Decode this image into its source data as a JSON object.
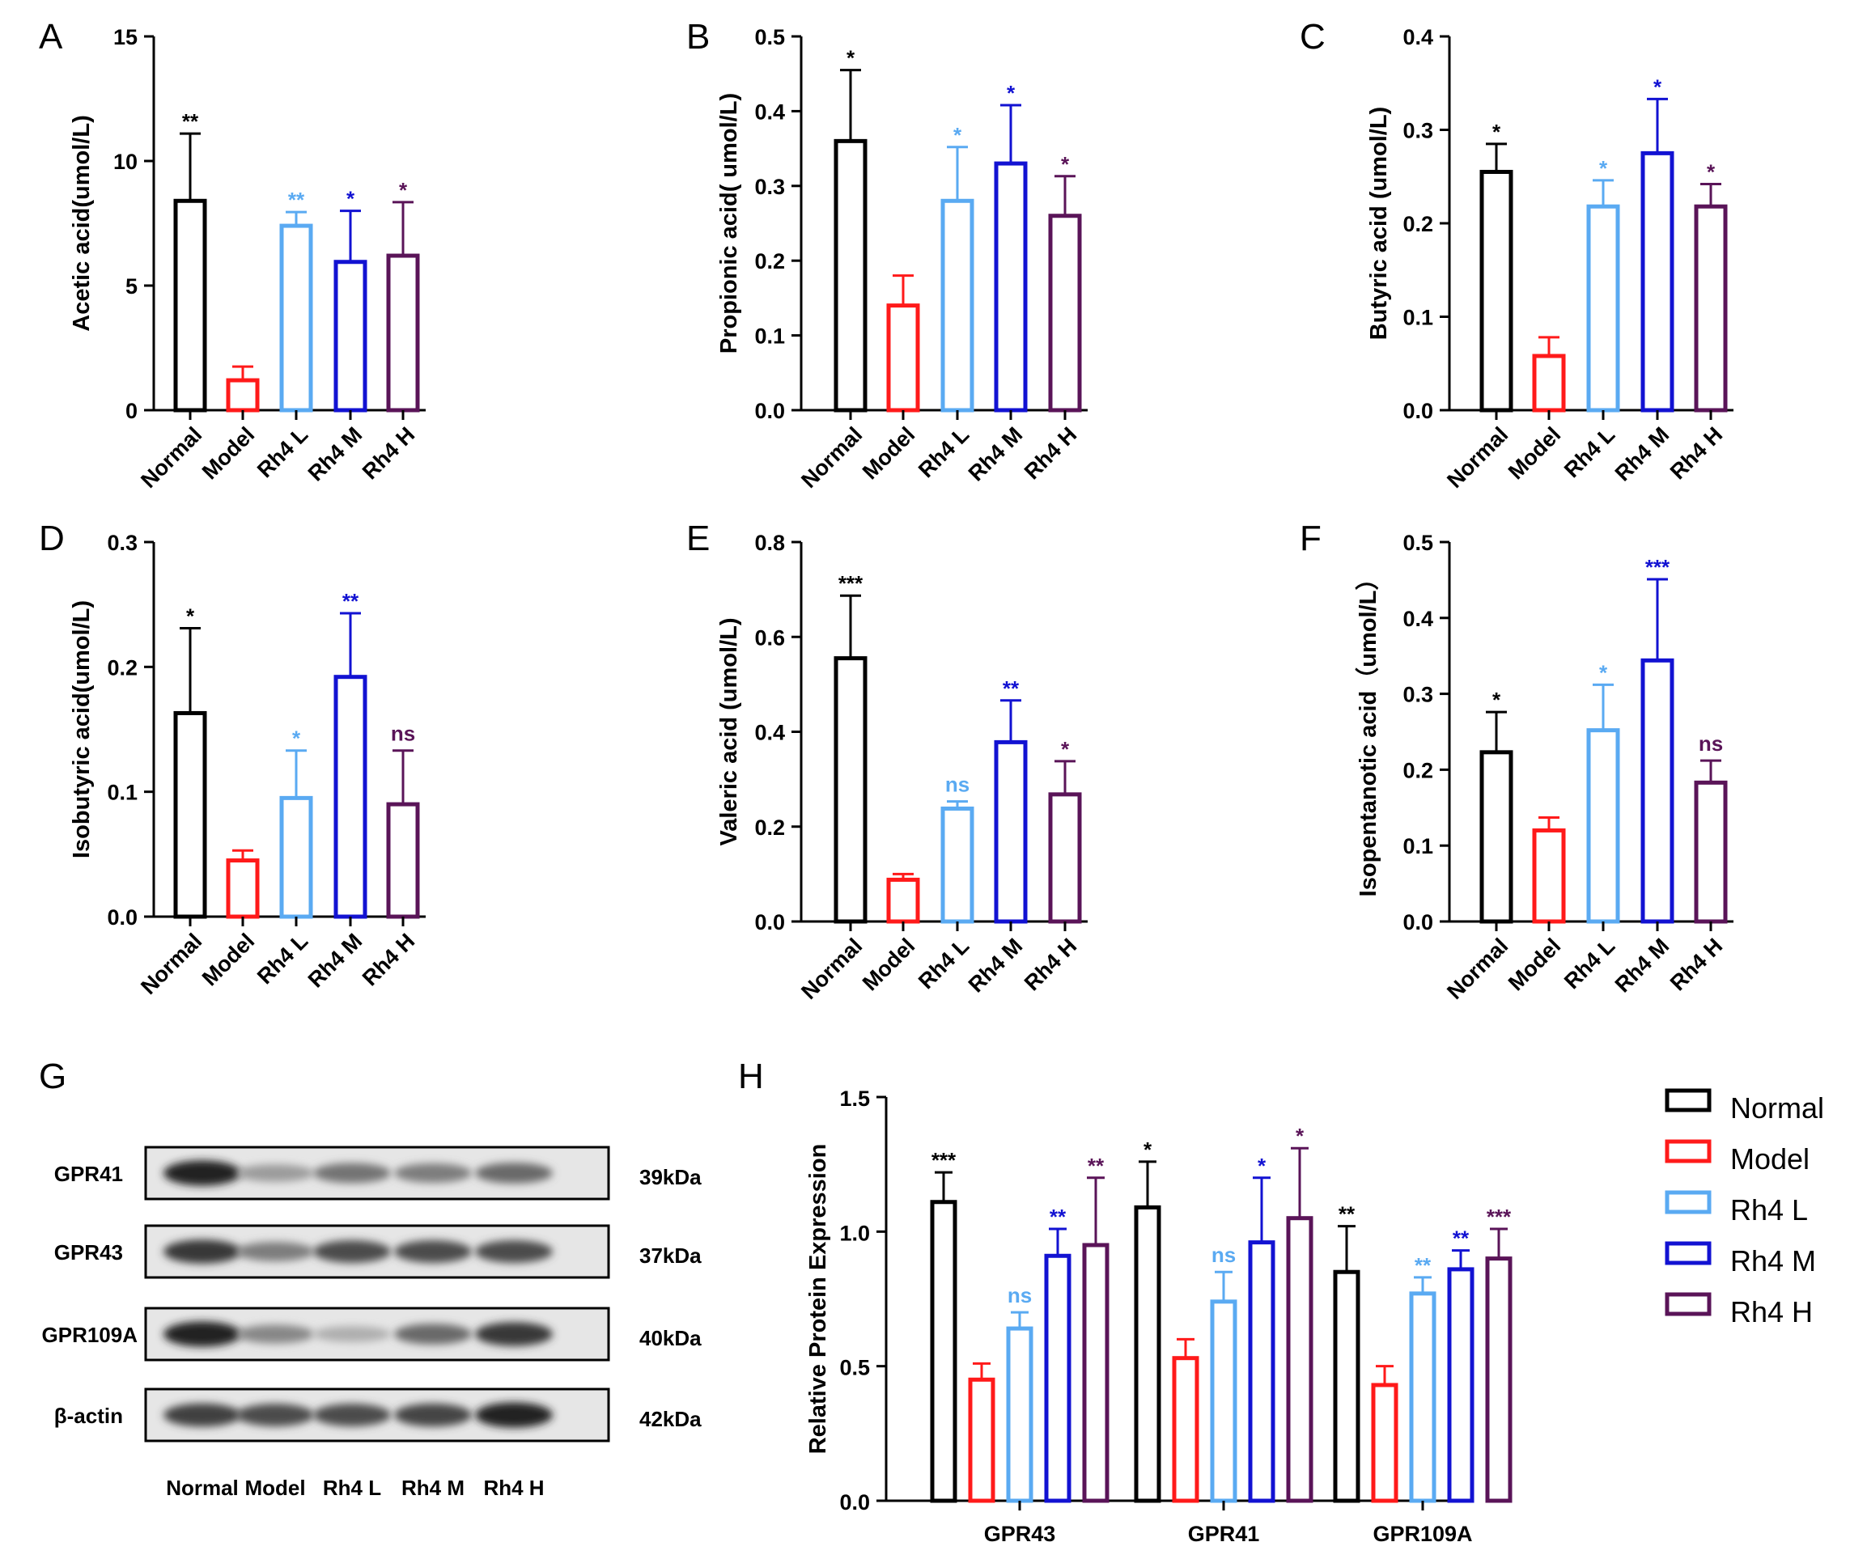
{
  "colors": {
    "Normal": "#000000",
    "Model": "#ff1a1a",
    "Rh4 L": "#5aaaf2",
    "Rh4 M": "#1212d2",
    "Rh4 H": "#5a1458"
  },
  "groups": [
    "Normal",
    "Model",
    "Rh4 L",
    "Rh4 M",
    "Rh4 H"
  ],
  "chart_data": [
    {
      "panel": "A",
      "type": "bar",
      "categories": [
        "Normal",
        "Model",
        "Rh4 L",
        "Rh4 M",
        "Rh4 H"
      ],
      "values": [
        8.4,
        1.2,
        7.4,
        5.95,
        6.2
      ],
      "errors": [
        2.7,
        0.55,
        0.55,
        2.05,
        2.15
      ],
      "significance": [
        "**",
        "",
        "**",
        "*",
        "*"
      ],
      "ylabel": "Acetic acid(umol/L)",
      "ylim": [
        0,
        15
      ],
      "yticks": [
        0,
        5,
        10,
        15
      ],
      "ytick_labels": [
        "0",
        "5",
        "10",
        "15"
      ]
    },
    {
      "panel": "B",
      "type": "bar",
      "categories": [
        "Normal",
        "Model",
        "Rh4 L",
        "Rh4 M",
        "Rh4 H"
      ],
      "values": [
        0.36,
        0.14,
        0.28,
        0.33,
        0.26
      ],
      "errors": [
        0.095,
        0.04,
        0.072,
        0.078,
        0.053
      ],
      "significance": [
        "*",
        "",
        "*",
        "*",
        "*"
      ],
      "ylabel": "Propionic   acid( umol/L)",
      "ylim": [
        0,
        0.5
      ],
      "yticks": [
        0,
        0.1,
        0.2,
        0.3,
        0.4,
        0.5
      ],
      "ytick_labels": [
        "0.0",
        "0.1",
        "0.2",
        "0.3",
        "0.4",
        "0.5"
      ]
    },
    {
      "panel": "C",
      "type": "bar",
      "categories": [
        "Normal",
        "Model",
        "Rh4 L",
        "Rh4 M",
        "Rh4 H"
      ],
      "values": [
        0.255,
        0.058,
        0.218,
        0.275,
        0.218
      ],
      "errors": [
        0.03,
        0.02,
        0.028,
        0.058,
        0.024
      ],
      "significance": [
        "*",
        "",
        "*",
        "*",
        "*"
      ],
      "ylabel": "Butyric acid (umol/L)",
      "ylim": [
        0,
        0.4
      ],
      "yticks": [
        0,
        0.1,
        0.2,
        0.3,
        0.4
      ],
      "ytick_labels": [
        "0.0",
        "0.1",
        "0.2",
        "0.3",
        "0.4"
      ]
    },
    {
      "panel": "D",
      "type": "bar",
      "categories": [
        "Normal",
        "Model",
        "Rh4 L",
        "Rh4 M",
        "Rh4 H"
      ],
      "values": [
        0.163,
        0.045,
        0.095,
        0.192,
        0.09
      ],
      "errors": [
        0.068,
        0.008,
        0.038,
        0.051,
        0.043
      ],
      "significance": [
        "*",
        "",
        "*",
        "**",
        "ns"
      ],
      "ylabel": "Isobutyric acid(umol/L)",
      "ylim": [
        0,
        0.3
      ],
      "yticks": [
        0,
        0.1,
        0.2,
        0.3
      ],
      "ytick_labels": [
        "0.0",
        "0.1",
        "0.2",
        "0.3"
      ]
    },
    {
      "panel": "E",
      "type": "bar",
      "categories": [
        "Normal",
        "Model",
        "Rh4 L",
        "Rh4 M",
        "Rh4 H"
      ],
      "values": [
        0.555,
        0.088,
        0.238,
        0.378,
        0.268
      ],
      "errors": [
        0.132,
        0.012,
        0.015,
        0.088,
        0.07
      ],
      "significance": [
        "***",
        "",
        "ns",
        "**",
        "*"
      ],
      "ylabel": "Valeric acid (umol/L)",
      "ylim": [
        0,
        0.8
      ],
      "yticks": [
        0,
        0.2,
        0.4,
        0.6,
        0.8
      ],
      "ytick_labels": [
        "0.0",
        "0.2",
        "0.4",
        "0.6",
        "0.8"
      ]
    },
    {
      "panel": "F",
      "type": "bar",
      "categories": [
        "Normal",
        "Model",
        "Rh4 L",
        "Rh4 M",
        "Rh4 H"
      ],
      "values": [
        0.223,
        0.12,
        0.252,
        0.344,
        0.183
      ],
      "errors": [
        0.053,
        0.017,
        0.06,
        0.107,
        0.029
      ],
      "significance": [
        "*",
        "",
        "*",
        "***",
        "ns"
      ],
      "ylabel": "Isopentanotic acid（umol/L）",
      "ylim": [
        0,
        0.5
      ],
      "yticks": [
        0,
        0.1,
        0.2,
        0.3,
        0.4,
        0.5
      ],
      "ytick_labels": [
        "0.0",
        "0.1",
        "0.2",
        "0.3",
        "0.4",
        "0.5"
      ]
    },
    {
      "panel": "H",
      "type": "bar",
      "categories": [
        "GPR43",
        "GPR41",
        "GPR109A"
      ],
      "series": [
        {
          "name": "Normal",
          "values": [
            1.11,
            1.09,
            0.85
          ],
          "errors": [
            0.11,
            0.17,
            0.17
          ],
          "significance": [
            "***",
            "*",
            "**"
          ]
        },
        {
          "name": "Model",
          "values": [
            0.45,
            0.53,
            0.43
          ],
          "errors": [
            0.06,
            0.07,
            0.07
          ],
          "significance": [
            "",
            "",
            ""
          ]
        },
        {
          "name": "Rh4 L",
          "values": [
            0.64,
            0.74,
            0.77
          ],
          "errors": [
            0.06,
            0.11,
            0.06
          ],
          "significance": [
            "ns",
            "ns",
            "**"
          ]
        },
        {
          "name": "Rh4 M",
          "values": [
            0.91,
            0.96,
            0.86
          ],
          "errors": [
            0.1,
            0.24,
            0.07
          ],
          "significance": [
            "**",
            "*",
            "**"
          ]
        },
        {
          "name": "Rh4 H",
          "values": [
            0.95,
            1.05,
            0.9
          ],
          "errors": [
            0.25,
            0.26,
            0.11
          ],
          "significance": [
            "**",
            "*",
            "***"
          ]
        }
      ],
      "ylabel": "Relative Protein Expression",
      "ylim": [
        0,
        1.5
      ],
      "yticks": [
        0,
        0.5,
        1.0,
        1.5
      ],
      "ytick_labels": [
        "0.0",
        "0.5",
        "1.0",
        "1.5"
      ],
      "legend": [
        "Normal",
        "Model",
        "Rh4 L",
        "Rh4 M",
        "Rh4 H"
      ]
    }
  ],
  "blot": {
    "panel": "G",
    "rows": [
      {
        "protein": "GPR41",
        "size": "39kDa",
        "intensity": [
          0.95,
          0.35,
          0.55,
          0.5,
          0.6
        ]
      },
      {
        "protein": "GPR43",
        "size": "37kDa",
        "intensity": [
          0.85,
          0.5,
          0.75,
          0.75,
          0.75
        ]
      },
      {
        "protein": "GPR109A",
        "size": "40kDa",
        "intensity": [
          0.95,
          0.45,
          0.25,
          0.6,
          0.85
        ]
      },
      {
        "protein": "β-actin",
        "size": "42kDa",
        "intensity": [
          0.8,
          0.75,
          0.75,
          0.78,
          0.95
        ]
      }
    ],
    "lanes": [
      "Normal",
      "Model",
      "Rh4 L",
      "Rh4 M",
      "Rh4 H"
    ]
  }
}
